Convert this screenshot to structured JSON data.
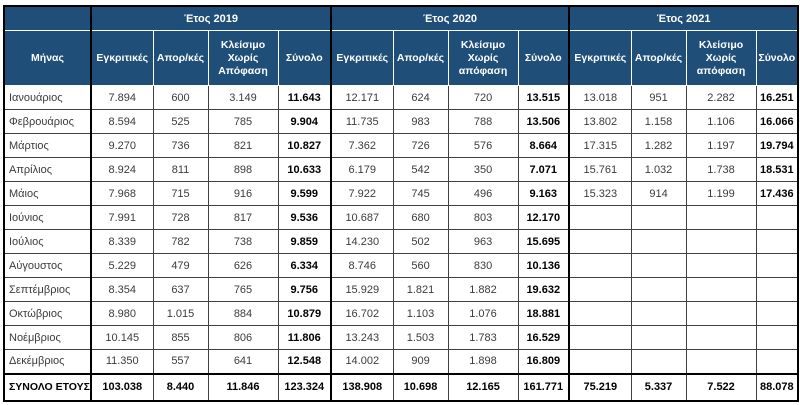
{
  "table": {
    "month_header": "Μήνας",
    "year_groups": [
      {
        "label": "Έτος 2019",
        "columns": [
          "Εγκριτικές",
          "Απορ/κές",
          "Κλείσιμο Χωρίς Απόφαση",
          "Σύνολο"
        ]
      },
      {
        "label": "Έτος 2020",
        "columns": [
          "Εγκριτικές",
          "Απορ/κές",
          "Κλείσιμο Χωρίς απόφαση",
          "Σύνολο"
        ]
      },
      {
        "label": "Έτος 2021",
        "columns": [
          "Εγκριτικές",
          "Απορ/κές",
          "Κλείσιμο Χωρίς απόφαση",
          "Σύνολο"
        ]
      }
    ],
    "rows": [
      {
        "month": "Ιανουάριος",
        "values": [
          "7.894",
          "600",
          "3.149",
          "11.643",
          "12.171",
          "624",
          "720",
          "13.515",
          "13.018",
          "951",
          "2.282",
          "16.251"
        ]
      },
      {
        "month": "Φεβρουάριος",
        "values": [
          "8.594",
          "525",
          "785",
          "9.904",
          "11.735",
          "983",
          "788",
          "13.506",
          "13.802",
          "1.158",
          "1.106",
          "16.066"
        ]
      },
      {
        "month": "Μάρτιος",
        "values": [
          "9.270",
          "736",
          "821",
          "10.827",
          "7.362",
          "726",
          "576",
          "8.664",
          "17.315",
          "1.282",
          "1.197",
          "19.794"
        ]
      },
      {
        "month": "Απρίλιος",
        "values": [
          "8.924",
          "811",
          "898",
          "10.633",
          "6.179",
          "542",
          "350",
          "7.071",
          "15.761",
          "1.032",
          "1.738",
          "18.531"
        ]
      },
      {
        "month": "Μάιος",
        "values": [
          "7.968",
          "715",
          "916",
          "9.599",
          "7.922",
          "745",
          "496",
          "9.163",
          "15.323",
          "914",
          "1.199",
          "17.436"
        ]
      },
      {
        "month": "Ιούνιος",
        "values": [
          "7.991",
          "728",
          "817",
          "9.536",
          "10.687",
          "680",
          "803",
          "12.170",
          "",
          "",
          "",
          ""
        ]
      },
      {
        "month": "Ιούλιος",
        "values": [
          "8.339",
          "782",
          "738",
          "9.859",
          "14.230",
          "502",
          "963",
          "15.695",
          "",
          "",
          "",
          ""
        ]
      },
      {
        "month": "Αύγουστος",
        "values": [
          "5.229",
          "479",
          "626",
          "6.334",
          "8.746",
          "560",
          "830",
          "10.136",
          "",
          "",
          "",
          ""
        ]
      },
      {
        "month": "Σεπτέμβριος",
        "values": [
          "8.354",
          "637",
          "765",
          "9.756",
          "15.929",
          "1.821",
          "1.882",
          "19.632",
          "",
          "",
          "",
          ""
        ]
      },
      {
        "month": "Οκτώβριος",
        "values": [
          "8.980",
          "1.015",
          "884",
          "10.879",
          "16.702",
          "1.103",
          "1.076",
          "18.881",
          "",
          "",
          "",
          ""
        ]
      },
      {
        "month": "Νοέμβριος",
        "values": [
          "10.145",
          "855",
          "806",
          "11.806",
          "13.243",
          "1.503",
          "1.783",
          "16.529",
          "",
          "",
          "",
          ""
        ]
      },
      {
        "month": "Δεκέμβριος",
        "values": [
          "11.350",
          "557",
          "641",
          "12.548",
          "14.002",
          "909",
          "1.898",
          "16.809",
          "",
          "",
          "",
          ""
        ]
      }
    ],
    "total_row": {
      "label": "ΣΥΝΟΛΟ ΕΤΟΥΣ",
      "values": [
        "103.038",
        "8.440",
        "11.846",
        "123.324",
        "138.908",
        "10.698",
        "12.165",
        "161.771",
        "75.219",
        "5.337",
        "7.522",
        "88.078"
      ]
    }
  },
  "colors": {
    "header_bg": "#1F4E79",
    "header_text": "#FFFFFF",
    "grid_line": "#404040",
    "group_border": "#000000",
    "body_text": "#3B3B3B",
    "total_text": "#000000"
  }
}
